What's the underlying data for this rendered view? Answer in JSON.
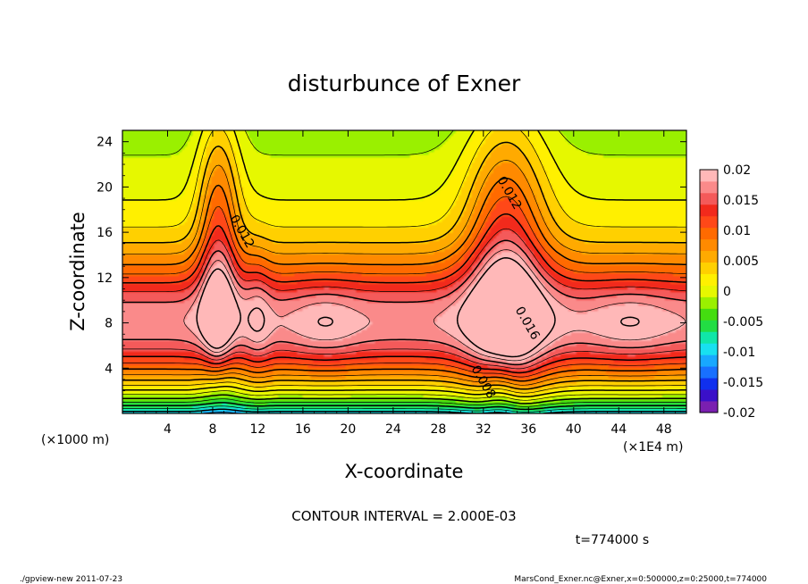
{
  "chart_data": {
    "type": "heatmap",
    "title": "disturbunce of Exner",
    "xlabel": "X-coordinate",
    "ylabel": "Z-coordinate",
    "x_unit_left": "(×1000 m)",
    "x_unit_right": "(×1E4 m)",
    "xlim": [
      0,
      50
    ],
    "ylim": [
      0,
      25
    ],
    "x_ticks": [
      "4",
      "8",
      "12",
      "16",
      "20",
      "24",
      "28",
      "32",
      "36",
      "40",
      "44",
      "48"
    ],
    "y_ticks": [
      "4",
      "8",
      "12",
      "16",
      "20",
      "24"
    ],
    "contour_interval_text": "CONTOUR INTERVAL = 2.000E-03",
    "time_text": "t=774000 s",
    "contour_labels": [
      {
        "text": "0.012",
        "x": 10.3,
        "z": 15.9
      },
      {
        "text": "0.012",
        "x": 34.0,
        "z": 19.3
      },
      {
        "text": "0.016",
        "x": 35.6,
        "z": 7.8
      },
      {
        "text": "0.008",
        "x": 31.7,
        "z": 2.6
      }
    ],
    "colorbar": {
      "range": [
        -0.02,
        0.02
      ],
      "labels": [
        "0.02",
        "0.015",
        "0.01",
        "0.005",
        "0",
        "-0.005",
        "-0.01",
        "-0.015",
        "-0.02"
      ],
      "colors": [
        "#7a1fb0",
        "#3a10c8",
        "#1030ee",
        "#1870ff",
        "#18a8ff",
        "#18e0f0",
        "#10e6a8",
        "#22dd44",
        "#44dd10",
        "#9af000",
        "#e6f800",
        "#fff000",
        "#ffd000",
        "#ffaa00",
        "#ff8a00",
        "#ff6a00",
        "#ff4818",
        "#f22a1c",
        "#f45a5a",
        "#fa8a8a",
        "#ffb8b8"
      ]
    }
  },
  "footer": {
    "left": "./gpview-new   2011-07-23",
    "right": "MarsCond_Exner.nc@Exner,x=0:500000,z=0:25000,t=774000"
  }
}
